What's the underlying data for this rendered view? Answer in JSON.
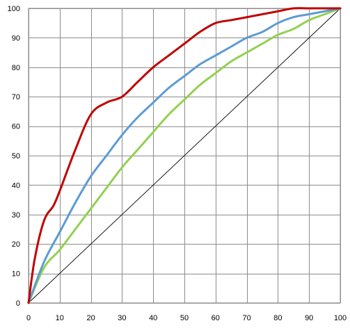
{
  "chart_data": {
    "type": "line",
    "title": "",
    "xlabel": "",
    "ylabel": "",
    "xlim": [
      0,
      100
    ],
    "ylim": [
      0,
      100
    ],
    "x_ticks": [
      0,
      10,
      20,
      30,
      40,
      50,
      60,
      70,
      80,
      90,
      100
    ],
    "y_ticks": [
      0,
      10,
      20,
      30,
      40,
      50,
      60,
      70,
      80,
      90,
      100
    ],
    "x_tick_labels": [
      "0",
      "10",
      "20",
      "30",
      "40",
      "50",
      "60",
      "70",
      "80",
      "90",
      "100"
    ],
    "y_tick_labels": [
      "0",
      "10",
      "20",
      "30",
      "40",
      "50",
      "60",
      "70",
      "80",
      "90",
      "100"
    ],
    "grid": true,
    "legend": "none",
    "series": [
      {
        "color": "#000000",
        "style": "thin",
        "x": [
          0,
          100
        ],
        "y": [
          0,
          100
        ]
      },
      {
        "color": "#92D050",
        "style": "thick",
        "x": [
          0,
          5,
          10,
          15,
          20,
          25,
          30,
          35,
          40,
          45,
          50,
          55,
          60,
          65,
          70,
          75,
          80,
          85,
          90,
          95,
          100
        ],
        "y": [
          0,
          12,
          18,
          25,
          32,
          39,
          46,
          52,
          58,
          64,
          69,
          74,
          78,
          82,
          85,
          88,
          91,
          93,
          96,
          98,
          100
        ]
      },
      {
        "color": "#5B9BD5",
        "style": "thick",
        "x": [
          0,
          5,
          10,
          15,
          20,
          25,
          30,
          35,
          40,
          45,
          50,
          55,
          60,
          65,
          70,
          75,
          80,
          85,
          90,
          95,
          100
        ],
        "y": [
          0,
          14,
          24,
          34,
          43,
          50,
          57,
          63,
          68,
          73,
          77,
          81,
          84,
          87,
          90,
          92,
          95,
          97,
          98,
          99,
          100
        ]
      },
      {
        "color": "#C00000",
        "style": "thick",
        "x": [
          0,
          2,
          5,
          8,
          10,
          15,
          20,
          25,
          30,
          35,
          40,
          45,
          50,
          55,
          60,
          65,
          70,
          75,
          80,
          85,
          90,
          95,
          100
        ],
        "y": [
          0,
          15,
          28,
          33,
          38,
          52,
          64,
          68,
          70,
          75,
          80,
          84,
          88,
          92,
          95,
          96,
          97,
          98,
          99,
          100,
          100,
          100,
          100
        ]
      }
    ]
  }
}
